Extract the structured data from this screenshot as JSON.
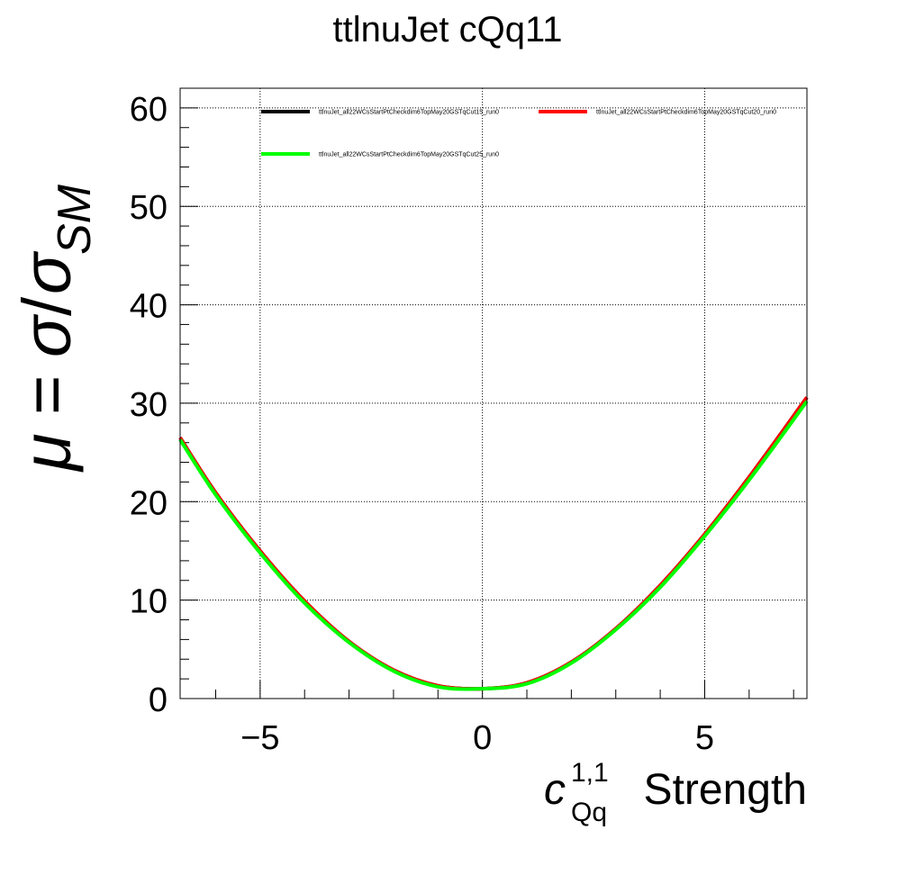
{
  "chart_data": {
    "type": "line",
    "title": "ttlnuJet cQq11",
    "xlabel": {
      "symbol": "c",
      "superscript": "1,1",
      "subscript": "Qq",
      "text": "Strength"
    },
    "ylabel": {
      "mu": "μ",
      "equals": "=",
      "sigma": "σ",
      "slash": "/",
      "subscript": "SM"
    },
    "xlim": [
      -6.8,
      7.3
    ],
    "ylim": [
      0,
      62
    ],
    "xticks": [
      {
        "value": -5,
        "label": "−5"
      },
      {
        "value": 0,
        "label": "0"
      },
      {
        "value": 5,
        "label": "5"
      }
    ],
    "yticks": [
      {
        "value": 0,
        "label": "0"
      },
      {
        "value": 10,
        "label": "10"
      },
      {
        "value": 20,
        "label": "20"
      },
      {
        "value": 30,
        "label": "30"
      },
      {
        "value": 40,
        "label": "40"
      },
      {
        "value": 50,
        "label": "50"
      },
      {
        "value": 60,
        "label": "60"
      }
    ],
    "grid": true,
    "legend_position": "top",
    "x": [
      -6.8,
      -6,
      -5,
      -4,
      -3,
      -2,
      -1,
      0,
      1,
      2,
      3,
      4,
      5,
      6,
      7.3
    ],
    "series": [
      {
        "name": "ttlnuJet_all22WCsStartPtCheckdim6TopMay20GSTqCut15_run0",
        "color": "#000000",
        "values": [
          26.5,
          20.9,
          15.0,
          9.9,
          5.8,
          2.9,
          1.3,
          1.0,
          1.6,
          3.7,
          7.1,
          11.5,
          16.7,
          22.5,
          30.6
        ]
      },
      {
        "name": "ttlnuJet_all22WCsStartPtCheckdim6TopMay20GSTqCut20_run0",
        "color": "#ff0000",
        "values": [
          26.5,
          20.9,
          15.0,
          9.9,
          5.8,
          2.9,
          1.3,
          1.0,
          1.6,
          3.7,
          7.1,
          11.5,
          16.7,
          22.5,
          30.6
        ]
      },
      {
        "name": "ttlnuJet_all22WCsStartPtCheckdim6TopMay20GSTqCut25_run0",
        "color": "#00ff00",
        "values": [
          26.3,
          20.7,
          14.8,
          9.7,
          5.7,
          2.8,
          1.2,
          1.0,
          1.5,
          3.6,
          7.0,
          11.3,
          16.5,
          22.2,
          30.2
        ]
      }
    ]
  }
}
